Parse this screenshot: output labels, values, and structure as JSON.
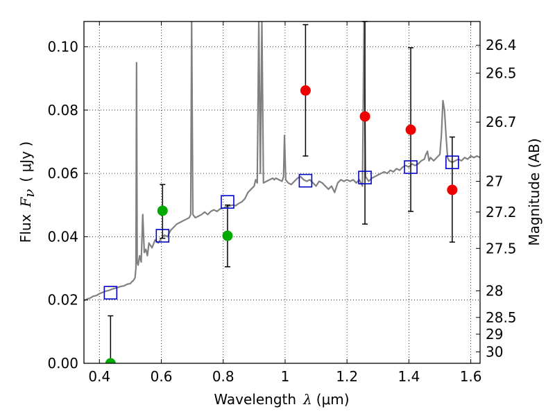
{
  "chart_data": {
    "type": "scatter",
    "xlabel": {
      "prefix": "Wavelength",
      "symbol": "λ",
      "unit": "(μm)"
    },
    "ylabel": {
      "prefix": "Flux",
      "symbol": "F",
      "sub": "ν",
      "unit": "( μJy )"
    },
    "y2label": "Magnitude (AB)",
    "xlim": [
      0.35,
      1.63
    ],
    "ylim": [
      0.0,
      0.108
    ],
    "grid": true,
    "xticks": [
      {
        "v": 0.4,
        "label": "0.4"
      },
      {
        "v": 0.6,
        "label": "0.6"
      },
      {
        "v": 0.8,
        "label": "0.8"
      },
      {
        "v": 1.0,
        "label": "1"
      },
      {
        "v": 1.2,
        "label": "1.2"
      },
      {
        "v": 1.4,
        "label": "1.4"
      },
      {
        "v": 1.6,
        "label": "1.6"
      }
    ],
    "yticks": [
      {
        "v": 0.0,
        "label": "0.00"
      },
      {
        "v": 0.02,
        "label": "0.02"
      },
      {
        "v": 0.04,
        "label": "0.04"
      },
      {
        "v": 0.06,
        "label": "0.06"
      },
      {
        "v": 0.08,
        "label": "0.08"
      },
      {
        "v": 0.1,
        "label": "0.10"
      }
    ],
    "mag_ticks": [
      {
        "flux": 0.1005,
        "label": "26.4"
      },
      {
        "flux": 0.0917,
        "label": "26.5"
      },
      {
        "flux": 0.0762,
        "label": "26.7"
      },
      {
        "flux": 0.0575,
        "label": "27"
      },
      {
        "flux": 0.0478,
        "label": "27.2"
      },
      {
        "flux": 0.0363,
        "label": "27.5"
      },
      {
        "flux": 0.0229,
        "label": "28"
      },
      {
        "flux": 0.0145,
        "label": "28.5"
      },
      {
        "flux": 0.0092,
        "label": "29"
      },
      {
        "flux": 0.0036,
        "label": "30"
      }
    ],
    "colors": {
      "spectrum": "#808080",
      "model": "#0000cc",
      "green": "#00aa00",
      "red": "#ee0000",
      "errorbar": "#000000",
      "grid": "#000000"
    },
    "spectrum": {
      "points": [
        [
          0.35,
          0.0198
        ],
        [
          0.36,
          0.0203
        ],
        [
          0.37,
          0.0206
        ],
        [
          0.38,
          0.0212
        ],
        [
          0.39,
          0.0214
        ],
        [
          0.4,
          0.022
        ],
        [
          0.41,
          0.0224
        ],
        [
          0.42,
          0.0228
        ],
        [
          0.43,
          0.023
        ],
        [
          0.44,
          0.0234
        ],
        [
          0.45,
          0.0237
        ],
        [
          0.46,
          0.024
        ],
        [
          0.47,
          0.0243
        ],
        [
          0.48,
          0.0245
        ],
        [
          0.49,
          0.025
        ],
        [
          0.5,
          0.0252
        ],
        [
          0.505,
          0.0258
        ],
        [
          0.51,
          0.0262
        ],
        [
          0.515,
          0.027
        ],
        [
          0.518,
          0.03
        ],
        [
          0.52,
          0.095
        ],
        [
          0.522,
          0.032
        ],
        [
          0.525,
          0.031
        ],
        [
          0.53,
          0.034
        ],
        [
          0.535,
          0.032
        ],
        [
          0.54,
          0.047
        ],
        [
          0.545,
          0.035
        ],
        [
          0.55,
          0.036
        ],
        [
          0.555,
          0.034
        ],
        [
          0.56,
          0.038
        ],
        [
          0.57,
          0.0365
        ],
        [
          0.58,
          0.039
        ],
        [
          0.59,
          0.038
        ],
        [
          0.6,
          0.0395
        ],
        [
          0.61,
          0.0405
        ],
        [
          0.62,
          0.04
        ],
        [
          0.63,
          0.042
        ],
        [
          0.64,
          0.043
        ],
        [
          0.65,
          0.044
        ],
        [
          0.66,
          0.0445
        ],
        [
          0.67,
          0.045
        ],
        [
          0.68,
          0.0455
        ],
        [
          0.69,
          0.046
        ],
        [
          0.695,
          0.047
        ],
        [
          0.698,
          0.108
        ],
        [
          0.702,
          0.047
        ],
        [
          0.71,
          0.046
        ],
        [
          0.72,
          0.0465
        ],
        [
          0.73,
          0.047
        ],
        [
          0.74,
          0.0478
        ],
        [
          0.75,
          0.047
        ],
        [
          0.76,
          0.048
        ],
        [
          0.77,
          0.0485
        ],
        [
          0.78,
          0.048
        ],
        [
          0.79,
          0.0488
        ],
        [
          0.8,
          0.049
        ],
        [
          0.81,
          0.0495
        ],
        [
          0.82,
          0.0497
        ],
        [
          0.83,
          0.05
        ],
        [
          0.84,
          0.0498
        ],
        [
          0.85,
          0.0505
        ],
        [
          0.86,
          0.051
        ],
        [
          0.87,
          0.052
        ],
        [
          0.88,
          0.054
        ],
        [
          0.89,
          0.055
        ],
        [
          0.9,
          0.056
        ],
        [
          0.905,
          0.058
        ],
        [
          0.91,
          0.057
        ],
        [
          0.915,
          0.108
        ],
        [
          0.92,
          0.06
        ],
        [
          0.925,
          0.108
        ],
        [
          0.93,
          0.057
        ],
        [
          0.94,
          0.0575
        ],
        [
          0.95,
          0.058
        ],
        [
          0.96,
          0.0585
        ],
        [
          0.965,
          0.058
        ],
        [
          0.97,
          0.0585
        ],
        [
          0.98,
          0.058
        ],
        [
          0.99,
          0.0575
        ],
        [
          0.995,
          0.059
        ],
        [
          0.998,
          0.072
        ],
        [
          1.002,
          0.058
        ],
        [
          1.01,
          0.057
        ],
        [
          1.02,
          0.0565
        ],
        [
          1.03,
          0.0575
        ],
        [
          1.04,
          0.0585
        ],
        [
          1.05,
          0.059
        ],
        [
          1.06,
          0.058
        ],
        [
          1.07,
          0.0575
        ],
        [
          1.08,
          0.058
        ],
        [
          1.09,
          0.057
        ],
        [
          1.1,
          0.056
        ],
        [
          1.11,
          0.0575
        ],
        [
          1.12,
          0.057
        ],
        [
          1.13,
          0.056
        ],
        [
          1.14,
          0.055
        ],
        [
          1.15,
          0.056
        ],
        [
          1.16,
          0.054
        ],
        [
          1.17,
          0.057
        ],
        [
          1.18,
          0.058
        ],
        [
          1.19,
          0.0575
        ],
        [
          1.2,
          0.058
        ],
        [
          1.21,
          0.0575
        ],
        [
          1.22,
          0.058
        ],
        [
          1.23,
          0.057
        ],
        [
          1.24,
          0.058
        ],
        [
          1.245,
          0.057
        ],
        [
          1.25,
          0.056
        ],
        [
          1.255,
          0.108
        ],
        [
          1.26,
          0.059
        ],
        [
          1.27,
          0.0575
        ],
        [
          1.28,
          0.0585
        ],
        [
          1.29,
          0.059
        ],
        [
          1.3,
          0.0595
        ],
        [
          1.31,
          0.06
        ],
        [
          1.32,
          0.0605
        ],
        [
          1.33,
          0.06
        ],
        [
          1.34,
          0.061
        ],
        [
          1.35,
          0.0605
        ],
        [
          1.36,
          0.0615
        ],
        [
          1.37,
          0.061
        ],
        [
          1.38,
          0.062
        ],
        [
          1.39,
          0.0625
        ],
        [
          1.4,
          0.062
        ],
        [
          1.41,
          0.063
        ],
        [
          1.42,
          0.0625
        ],
        [
          1.43,
          0.063
        ],
        [
          1.44,
          0.064
        ],
        [
          1.45,
          0.0645
        ],
        [
          1.455,
          0.066
        ],
        [
          1.46,
          0.067
        ],
        [
          1.465,
          0.064
        ],
        [
          1.47,
          0.065
        ],
        [
          1.48,
          0.064
        ],
        [
          1.49,
          0.065
        ],
        [
          1.5,
          0.066
        ],
        [
          1.505,
          0.072
        ],
        [
          1.51,
          0.083
        ],
        [
          1.515,
          0.08
        ],
        [
          1.52,
          0.072
        ],
        [
          1.525,
          0.065
        ],
        [
          1.53,
          0.064
        ],
        [
          1.54,
          0.0635
        ],
        [
          1.55,
          0.064
        ],
        [
          1.56,
          0.0645
        ],
        [
          1.57,
          0.064
        ],
        [
          1.58,
          0.065
        ],
        [
          1.59,
          0.0645
        ],
        [
          1.6,
          0.0655
        ],
        [
          1.61,
          0.065
        ],
        [
          1.62,
          0.0655
        ],
        [
          1.63,
          0.065
        ]
      ]
    },
    "series": [
      {
        "marker": "square",
        "color_key": "model",
        "points": [
          [
            0.436,
            0.0223
          ],
          [
            0.604,
            0.0403
          ],
          [
            0.814,
            0.051
          ],
          [
            1.066,
            0.0577
          ],
          [
            1.258,
            0.0587
          ],
          [
            1.406,
            0.062
          ],
          [
            1.54,
            0.0635
          ]
        ]
      },
      {
        "marker": "circle",
        "color_key": "green",
        "points": [
          [
            0.436,
            0.0,
            null,
            0.015
          ],
          [
            0.604,
            0.0482,
            0.0395,
            0.0565
          ],
          [
            0.814,
            0.0403,
            0.0305,
            0.05
          ]
        ]
      },
      {
        "marker": "circle",
        "color_key": "red",
        "points": [
          [
            1.066,
            0.0862,
            0.0655,
            0.107
          ],
          [
            1.258,
            0.078,
            0.044,
            0.108
          ],
          [
            1.406,
            0.0738,
            0.048,
            0.0997
          ],
          [
            1.54,
            0.0548,
            0.0383,
            0.0715
          ]
        ]
      }
    ]
  }
}
